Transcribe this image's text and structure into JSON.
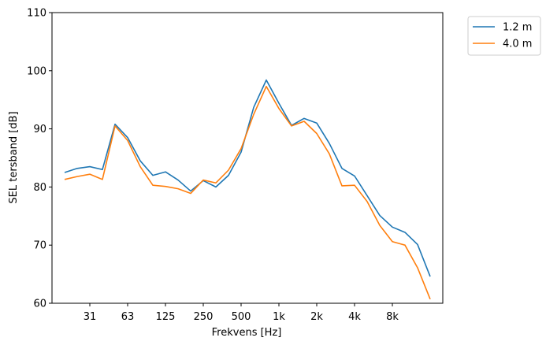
{
  "chart_data": {
    "type": "line",
    "xlabel": "Frekvens [Hz]",
    "ylabel": "SEL tersband [dB]",
    "ylim": [
      60,
      110
    ],
    "yticks": [
      60,
      70,
      80,
      90,
      100,
      110
    ],
    "xtick_labels": [
      "31",
      "63",
      "125",
      "250",
      "500",
      "1k",
      "2k",
      "4k",
      "8k"
    ],
    "x": [
      "20",
      "25",
      "31.5",
      "40",
      "50",
      "63",
      "80",
      "100",
      "125",
      "160",
      "200",
      "250",
      "315",
      "400",
      "500",
      "630",
      "800",
      "1000",
      "1250",
      "1600",
      "2000",
      "2500",
      "3150",
      "4000",
      "5000",
      "6300",
      "8000",
      "10000",
      "12500",
      "16000"
    ],
    "legend_position": "outside-top-right",
    "grid": false,
    "series": [
      {
        "name": "1.2 m",
        "color": "#1f77b4",
        "values": [
          82.5,
          83.2,
          83.5,
          83.0,
          90.8,
          88.5,
          84.5,
          82.0,
          82.6,
          81.2,
          79.3,
          81.1,
          80.0,
          82.0,
          86.0,
          93.7,
          98.4,
          94.4,
          90.6,
          91.8,
          91.0,
          87.5,
          83.2,
          81.9,
          78.5,
          75.1,
          73.1,
          72.2,
          70.1,
          64.6
        ]
      },
      {
        "name": "4.0 m",
        "color": "#ff7f0e",
        "values": [
          81.3,
          81.8,
          82.2,
          81.3,
          90.5,
          88.0,
          83.5,
          80.3,
          80.1,
          79.7,
          78.9,
          81.2,
          80.7,
          82.9,
          86.6,
          92.5,
          97.3,
          93.5,
          90.5,
          91.3,
          89.2,
          85.7,
          80.2,
          80.3,
          77.5,
          73.4,
          70.6,
          70.0,
          66.1,
          60.7
        ]
      }
    ]
  }
}
